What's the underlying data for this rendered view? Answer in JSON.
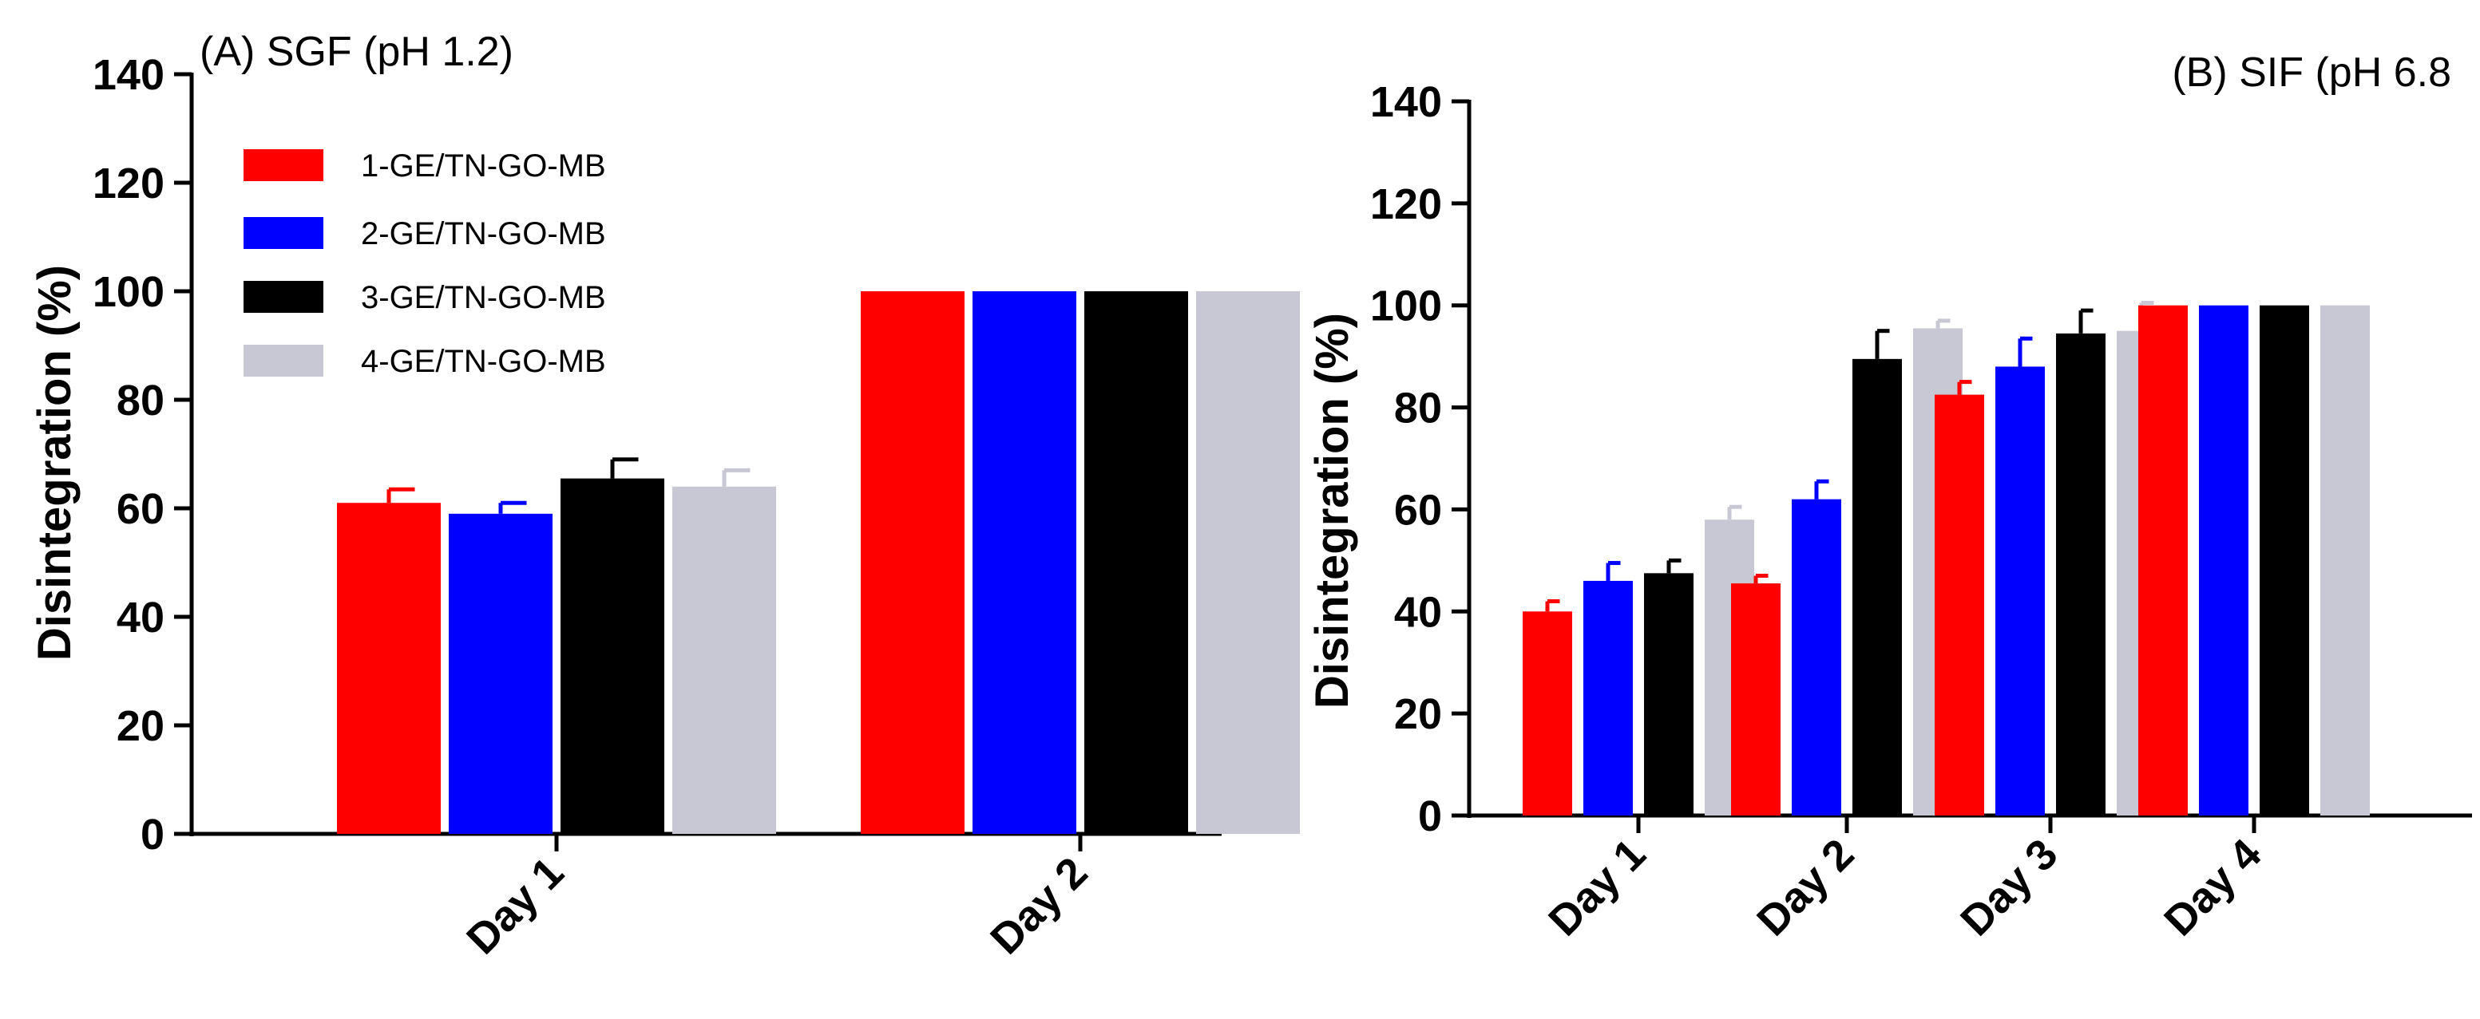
{
  "colors": {
    "1-GE/TN-GO-MB": "#ff0000",
    "2-GE/TN-GO-MB": "#0000ff",
    "3-GE/TN-GO-MB": "#000000",
    "4-GE/TN-GO-MB": "#c8c8d4"
  },
  "chart_data": [
    {
      "type": "bar",
      "title": "(A) SGF (pH 1.2)",
      "xlabel": "",
      "ylabel": "Disintegration (%)",
      "ylim": [
        0,
        140
      ],
      "yticks": [
        0,
        20,
        40,
        60,
        80,
        100,
        120,
        140
      ],
      "categories": [
        "Day 1",
        "Day 2"
      ],
      "legend": "top-left",
      "series": [
        {
          "name": "1-GE/TN-GO-MB",
          "values": [
            61,
            100
          ],
          "errors": [
            2.5,
            0
          ]
        },
        {
          "name": "2-GE/TN-GO-MB",
          "values": [
            59,
            100
          ],
          "errors": [
            2,
            0
          ]
        },
        {
          "name": "3-GE/TN-GO-MB",
          "values": [
            65.5,
            100
          ],
          "errors": [
            3.5,
            0
          ]
        },
        {
          "name": "4-GE/TN-GO-MB",
          "values": [
            64,
            100
          ],
          "errors": [
            3,
            0
          ]
        }
      ]
    },
    {
      "type": "bar",
      "title": "(B) SIF (pH 6.8",
      "xlabel": "",
      "ylabel": "Disintegration (%)",
      "ylim": [
        0,
        140
      ],
      "yticks": [
        0,
        20,
        40,
        60,
        80,
        100,
        120,
        140
      ],
      "categories": [
        "Day 1",
        "Day 2",
        "Day 3",
        "Day 4"
      ],
      "legend": "none",
      "series": [
        {
          "name": "1-GE/TN-GO-MB",
          "values": [
            40,
            45.5,
            82.5,
            100
          ],
          "errors": [
            2,
            1.5,
            2.5,
            0
          ]
        },
        {
          "name": "2-GE/TN-GO-MB",
          "values": [
            46,
            62,
            88,
            100
          ],
          "errors": [
            3.5,
            3.5,
            5.5,
            0
          ]
        },
        {
          "name": "3-GE/TN-GO-MB",
          "values": [
            47.5,
            89.5,
            94.5,
            100
          ],
          "errors": [
            2.5,
            5.5,
            4.5,
            0
          ]
        },
        {
          "name": "4-GE/TN-GO-MB",
          "values": [
            58,
            95.5,
            95,
            100
          ],
          "errors": [
            2.5,
            1.5,
            5.5,
            0
          ]
        }
      ]
    }
  ]
}
